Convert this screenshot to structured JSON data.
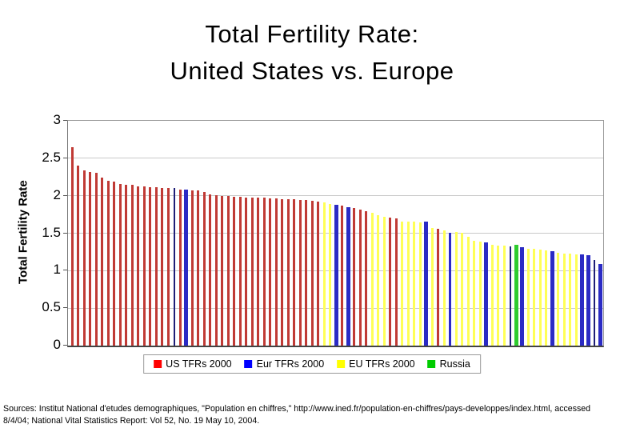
{
  "title": {
    "line1": "Total Fertility Rate:",
    "line2": "United States vs. Europe"
  },
  "footer": {
    "sources_line1": "Sources: Institut National d'etudes demographiques, \"Population en chiffres,\" http://www.ined.fr/population-en-chiffres/pays-developpes/index.html, accessed",
    "sources_line2": "8/4/04;  National Vital Statistics Report: Vol 52, No. 19 May 10, 2004."
  },
  "chart_data": {
    "type": "bar",
    "title": "Total Fertility Rate: United States vs. Europe",
    "xlabel": "",
    "ylabel": "Total Fertility Rate",
    "ylim": [
      0,
      3
    ],
    "yticks": [
      3,
      2.5,
      2,
      1.5,
      1,
      0.5,
      0
    ],
    "grid": true,
    "legend_position": "bottom",
    "colors": {
      "us_bar": "#c03a35",
      "eur_bar": "#2b2bc4",
      "eur_bar_dark": "#1e1e78",
      "eu_bar": "#ffff55",
      "russia_bar": "#2ecc2e",
      "gridline": "#c9c9c9"
    },
    "series": [
      {
        "key": "US",
        "name": "US TFRs 2000",
        "legend_color": "#ff0000"
      },
      {
        "key": "Eur",
        "name": "Eur TFRs 2000",
        "legend_color": "#0000ff"
      },
      {
        "key": "EU",
        "name": "EU TFRs 2000",
        "legend_color": "#ffff00"
      },
      {
        "key": "Russia",
        "name": "Russia",
        "legend_color": "#00cc00"
      }
    ],
    "bars": [
      {
        "s": "US",
        "v": 2.65
      },
      {
        "s": "US",
        "v": 2.4
      },
      {
        "s": "US",
        "v": 2.34
      },
      {
        "s": "US",
        "v": 2.32
      },
      {
        "s": "US",
        "v": 2.31
      },
      {
        "s": "US",
        "v": 2.24
      },
      {
        "s": "US",
        "v": 2.2
      },
      {
        "s": "US",
        "v": 2.19
      },
      {
        "s": "US",
        "v": 2.16
      },
      {
        "s": "US",
        "v": 2.15
      },
      {
        "s": "US",
        "v": 2.15
      },
      {
        "s": "US",
        "v": 2.13
      },
      {
        "s": "US",
        "v": 2.12
      },
      {
        "s": "US",
        "v": 2.11
      },
      {
        "s": "US",
        "v": 2.11
      },
      {
        "s": "US",
        "v": 2.1
      },
      {
        "s": "US",
        "v": 2.1
      },
      {
        "s": "Eur",
        "v": 2.1,
        "dark": true
      },
      {
        "s": "US",
        "v": 2.08
      },
      {
        "s": "Eur",
        "v": 2.08,
        "thick": true
      },
      {
        "s": "US",
        "v": 2.07
      },
      {
        "s": "US",
        "v": 2.07
      },
      {
        "s": "US",
        "v": 2.05
      },
      {
        "s": "US",
        "v": 2.02
      },
      {
        "s": "US",
        "v": 2.01
      },
      {
        "s": "US",
        "v": 2.0
      },
      {
        "s": "US",
        "v": 2.0
      },
      {
        "s": "US",
        "v": 1.99
      },
      {
        "s": "US",
        "v": 1.99
      },
      {
        "s": "US",
        "v": 1.98
      },
      {
        "s": "US",
        "v": 1.98
      },
      {
        "s": "US",
        "v": 1.97
      },
      {
        "s": "US",
        "v": 1.97
      },
      {
        "s": "US",
        "v": 1.96
      },
      {
        "s": "US",
        "v": 1.96
      },
      {
        "s": "US",
        "v": 1.95
      },
      {
        "s": "US",
        "v": 1.95
      },
      {
        "s": "US",
        "v": 1.95
      },
      {
        "s": "US",
        "v": 1.94
      },
      {
        "s": "US",
        "v": 1.94
      },
      {
        "s": "US",
        "v": 1.93
      },
      {
        "s": "US",
        "v": 1.92
      },
      {
        "s": "EU",
        "v": 1.91
      },
      {
        "s": "EU",
        "v": 1.89
      },
      {
        "s": "Eur",
        "v": 1.88,
        "thick": true
      },
      {
        "s": "US",
        "v": 1.87
      },
      {
        "s": "Eur",
        "v": 1.85,
        "thick": true
      },
      {
        "s": "US",
        "v": 1.84
      },
      {
        "s": "US",
        "v": 1.81
      },
      {
        "s": "US",
        "v": 1.79
      },
      {
        "s": "EU",
        "v": 1.77
      },
      {
        "s": "EU",
        "v": 1.74
      },
      {
        "s": "EU",
        "v": 1.72
      },
      {
        "s": "US",
        "v": 1.71
      },
      {
        "s": "US",
        "v": 1.7
      },
      {
        "s": "EU",
        "v": 1.66
      },
      {
        "s": "EU",
        "v": 1.66
      },
      {
        "s": "EU",
        "v": 1.65
      },
      {
        "s": "EU",
        "v": 1.64
      },
      {
        "s": "Eur",
        "v": 1.65,
        "thick": true
      },
      {
        "s": "EU",
        "v": 1.57
      },
      {
        "s": "US",
        "v": 1.56
      },
      {
        "s": "EU",
        "v": 1.54
      },
      {
        "s": "Eur",
        "v": 1.51
      },
      {
        "s": "EU",
        "v": 1.52
      },
      {
        "s": "EU",
        "v": 1.51
      },
      {
        "s": "EU",
        "v": 1.45
      },
      {
        "s": "EU",
        "v": 1.4
      },
      {
        "s": "EU",
        "v": 1.39
      },
      {
        "s": "Eur",
        "v": 1.38,
        "thick": true
      },
      {
        "s": "EU",
        "v": 1.35
      },
      {
        "s": "EU",
        "v": 1.34
      },
      {
        "s": "EU",
        "v": 1.33
      },
      {
        "s": "Eur",
        "v": 1.32,
        "dark": true
      },
      {
        "s": "Russia",
        "v": 1.35,
        "thick": true
      },
      {
        "s": "Eur",
        "v": 1.31,
        "thick": true
      },
      {
        "s": "EU",
        "v": 1.29
      },
      {
        "s": "EU",
        "v": 1.29
      },
      {
        "s": "EU",
        "v": 1.28
      },
      {
        "s": "EU",
        "v": 1.27
      },
      {
        "s": "Eur",
        "v": 1.26,
        "thick": true
      },
      {
        "s": "EU",
        "v": 1.24
      },
      {
        "s": "EU",
        "v": 1.23
      },
      {
        "s": "EU",
        "v": 1.23
      },
      {
        "s": "EU",
        "v": 1.22
      },
      {
        "s": "Eur",
        "v": 1.22,
        "thick": true
      },
      {
        "s": "Eur",
        "v": 1.21,
        "thick": true
      },
      {
        "s": "Eur",
        "v": 1.14,
        "dark": true
      },
      {
        "s": "Eur",
        "v": 1.09,
        "thick": true
      }
    ]
  }
}
